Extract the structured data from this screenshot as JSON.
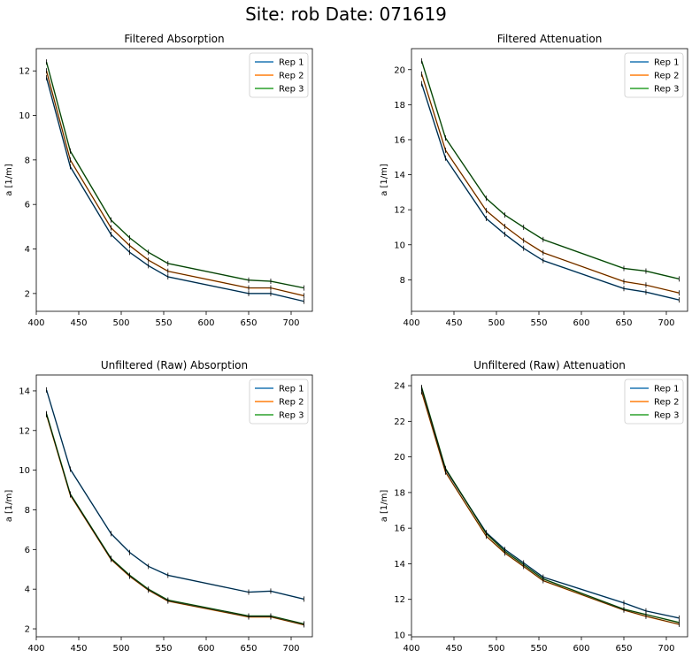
{
  "figure": {
    "suptitle": "Site: rob Date: 071619"
  },
  "colors": {
    "rep1": "#1f77b4",
    "rep2": "#ff7f0e",
    "rep3": "#2ca02c",
    "errorbar": "#000000"
  },
  "chart_data": [
    {
      "type": "line",
      "title": "Filtered Absorption",
      "xlabel": "",
      "ylabel": "a [1/m]",
      "xlim": [
        400,
        725
      ],
      "ylim": [
        1.2,
        13.0
      ],
      "xticks": [
        400,
        450,
        500,
        550,
        600,
        650,
        700
      ],
      "yticks": [
        2,
        4,
        6,
        8,
        10,
        12
      ],
      "legend": "top-right",
      "grid": false,
      "x": [
        412,
        440,
        488,
        510,
        532,
        555,
        650,
        676,
        715
      ],
      "series": [
        {
          "name": "Rep 1",
          "values": [
            11.7,
            7.7,
            4.65,
            3.85,
            3.25,
            2.75,
            2.0,
            2.0,
            1.65
          ]
        },
        {
          "name": "Rep 2",
          "values": [
            12.0,
            8.0,
            4.95,
            4.15,
            3.5,
            3.0,
            2.25,
            2.25,
            1.9
          ]
        },
        {
          "name": "Rep 3",
          "values": [
            12.4,
            8.4,
            5.3,
            4.5,
            3.85,
            3.35,
            2.6,
            2.55,
            2.25
          ]
        }
      ]
    },
    {
      "type": "line",
      "title": "Filtered Attenuation",
      "xlabel": "",
      "ylabel": "a [1/m]",
      "xlim": [
        400,
        725
      ],
      "ylim": [
        6.2,
        21.2
      ],
      "xticks": [
        400,
        450,
        500,
        550,
        600,
        650,
        700
      ],
      "yticks": [
        8,
        10,
        12,
        14,
        16,
        18,
        20
      ],
      "legend": "top-right",
      "grid": false,
      "x": [
        412,
        440,
        488,
        510,
        532,
        555,
        650,
        676,
        715
      ],
      "series": [
        {
          "name": "Rep 1",
          "values": [
            19.2,
            14.95,
            11.5,
            10.6,
            9.8,
            9.1,
            7.5,
            7.3,
            6.85
          ]
        },
        {
          "name": "Rep 2",
          "values": [
            19.75,
            15.4,
            11.95,
            11.05,
            10.25,
            9.55,
            7.9,
            7.7,
            7.25
          ]
        },
        {
          "name": "Rep 3",
          "values": [
            20.5,
            16.1,
            12.65,
            11.7,
            11.0,
            10.3,
            8.65,
            8.5,
            8.05
          ]
        }
      ]
    },
    {
      "type": "line",
      "title": "Unfiltered (Raw) Absorption",
      "xlabel": "",
      "ylabel": "a [1/m]",
      "xlim": [
        400,
        725
      ],
      "ylim": [
        1.6,
        14.8
      ],
      "xticks": [
        400,
        450,
        500,
        550,
        600,
        650,
        700
      ],
      "yticks": [
        2,
        4,
        6,
        8,
        10,
        12,
        14
      ],
      "legend": "top-right",
      "grid": false,
      "x": [
        412,
        440,
        488,
        510,
        532,
        555,
        650,
        676,
        715
      ],
      "series": [
        {
          "name": "Rep 1",
          "values": [
            14.05,
            10.05,
            6.8,
            5.85,
            5.15,
            4.7,
            3.85,
            3.9,
            3.5
          ]
        },
        {
          "name": "Rep 2",
          "values": [
            12.8,
            8.75,
            5.5,
            4.65,
            3.95,
            3.4,
            2.6,
            2.6,
            2.2
          ]
        },
        {
          "name": "Rep 3",
          "values": [
            12.85,
            8.8,
            5.55,
            4.7,
            4.0,
            3.45,
            2.65,
            2.65,
            2.25
          ]
        }
      ]
    },
    {
      "type": "line",
      "title": "Unfiltered (Raw) Attenuation",
      "xlabel": "",
      "ylabel": "a [1/m]",
      "xlim": [
        400,
        725
      ],
      "ylim": [
        9.9,
        24.6
      ],
      "xticks": [
        400,
        450,
        500,
        550,
        600,
        650,
        700
      ],
      "yticks": [
        10,
        12,
        14,
        16,
        18,
        20,
        22,
        24
      ],
      "legend": "top-right",
      "grid": false,
      "x": [
        412,
        440,
        488,
        510,
        532,
        555,
        650,
        676,
        715
      ],
      "series": [
        {
          "name": "Rep 1",
          "values": [
            23.85,
            19.3,
            15.75,
            14.8,
            14.05,
            13.25,
            11.8,
            11.35,
            10.95
          ]
        },
        {
          "name": "Rep 2",
          "values": [
            23.65,
            19.15,
            15.55,
            14.6,
            13.85,
            13.05,
            11.4,
            11.05,
            10.6
          ]
        },
        {
          "name": "Rep 3",
          "values": [
            23.9,
            19.35,
            15.7,
            14.7,
            13.95,
            13.15,
            11.45,
            11.15,
            10.7
          ]
        }
      ]
    }
  ]
}
